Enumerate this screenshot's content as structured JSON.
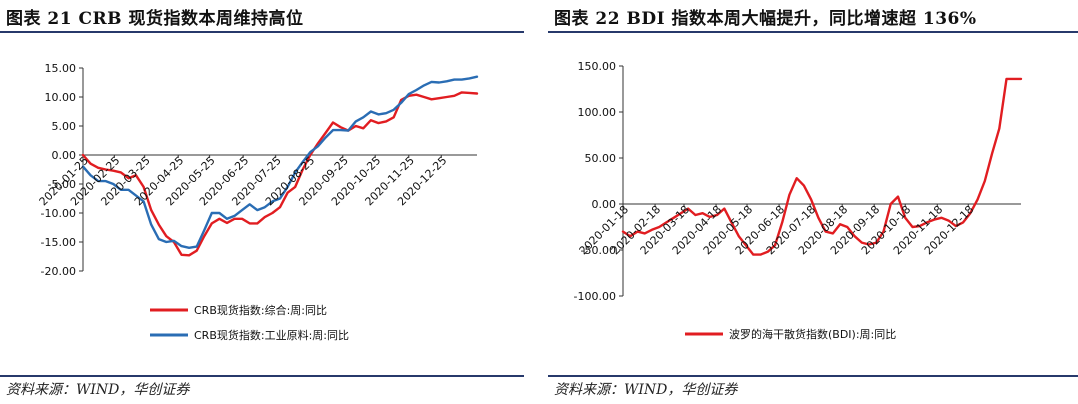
{
  "left": {
    "title": "图表 21   CRB 现货指数本周维持高位",
    "source": "资料来源：WIND，华创证券"
  },
  "right": {
    "title": "图表 22   BDI 指数本周大幅提升，同比增速超 136%",
    "source": "资料来源：WIND，华创证券"
  },
  "colors": {
    "red": "#e11d21",
    "blue": "#2a6db4",
    "rule": "#27396b"
  },
  "chart_data": [
    {
      "type": "line",
      "title": "CRB 现货指数本周维持高位",
      "ylim": [
        -20,
        15
      ],
      "yticks": [
        15,
        10,
        5,
        0,
        -5,
        -10,
        -15,
        -20
      ],
      "ytick_labels": [
        "15.00",
        "10.00",
        "5.00",
        "0.00",
        "-5.00",
        "-10.00",
        "-15.00",
        "-20.00"
      ],
      "xlim": [
        0,
        52
      ],
      "xtick_labels": [
        "2020-01-25",
        "2020-02-25",
        "2020-03-25",
        "2020-04-25",
        "2020-05-25",
        "2020-06-25",
        "2020-07-25",
        "2020-08-25",
        "2020-09-25",
        "2020-10-25",
        "2020-11-25",
        "2020-12-25"
      ],
      "xtick_pos": [
        0,
        4.14,
        8.14,
        12.57,
        16.71,
        21.14,
        25.43,
        29.86,
        34.29,
        38.57,
        43,
        47.29
      ],
      "legend_position": "bottom",
      "series": [
        {
          "name": "CRB现货指数:综合:周:同比",
          "color": "#e11d21",
          "x": [
            0,
            1,
            2,
            3,
            4,
            5,
            6,
            7,
            8,
            9,
            10,
            11,
            12,
            13,
            14,
            15,
            16,
            17,
            18,
            19,
            20,
            21,
            22,
            23,
            24,
            25,
            26,
            27,
            28,
            29,
            30,
            31,
            32,
            33,
            34,
            35,
            36,
            37,
            38,
            39,
            40,
            41,
            42,
            43,
            44,
            45,
            46,
            47,
            48,
            49,
            50,
            51,
            52
          ],
          "y": [
            0.0,
            -1.5,
            -2.2,
            -2.5,
            -2.7,
            -3.0,
            -4.0,
            -3.5,
            -5.5,
            -9.5,
            -12.0,
            -14.0,
            -15.0,
            -17.2,
            -17.3,
            -16.5,
            -14.0,
            -11.8,
            -11.0,
            -11.7,
            -11.0,
            -11.0,
            -11.8,
            -11.8,
            -10.7,
            -10.0,
            -9.0,
            -6.5,
            -5.5,
            -2.5,
            0.0,
            2.0,
            3.8,
            5.6,
            4.8,
            4.2,
            5.0,
            4.6,
            6.0,
            5.5,
            5.8,
            6.5,
            9.5,
            10.2,
            10.4,
            10.0,
            9.6,
            9.8,
            10.0,
            10.2,
            10.8,
            10.7,
            10.6
          ]
        },
        {
          "name": "CRB现货指数:工业原料:周:同比",
          "color": "#2a6db4",
          "x": [
            0,
            1,
            2,
            3,
            4,
            5,
            6,
            7,
            8,
            9,
            10,
            11,
            12,
            13,
            14,
            15,
            16,
            17,
            18,
            19,
            20,
            21,
            22,
            23,
            24,
            25,
            26,
            27,
            28,
            29,
            30,
            31,
            32,
            33,
            34,
            35,
            36,
            37,
            38,
            39,
            40,
            41,
            42,
            43,
            44,
            45,
            46,
            47,
            48,
            49,
            50,
            51,
            52
          ],
          "y": [
            -2.0,
            -3.5,
            -4.5,
            -4.5,
            -5.0,
            -6.0,
            -6.0,
            -7.0,
            -8.0,
            -12.0,
            -14.5,
            -15.0,
            -14.8,
            -15.7,
            -16.0,
            -15.8,
            -13.0,
            -10.0,
            -10.0,
            -11.0,
            -10.5,
            -9.5,
            -8.5,
            -9.5,
            -9.0,
            -8.0,
            -7.5,
            -5.5,
            -3.0,
            -1.2,
            0.5,
            1.5,
            3.0,
            4.3,
            4.3,
            4.2,
            5.8,
            6.5,
            7.5,
            7.0,
            7.2,
            7.8,
            9.0,
            10.5,
            11.2,
            12.0,
            12.6,
            12.5,
            12.7,
            13.0,
            13.0,
            13.2,
            13.5
          ]
        }
      ]
    },
    {
      "type": "line",
      "title": "BDI 指数本周大幅提升，同比增速超 136%",
      "ylim": [
        -100,
        150
      ],
      "yticks": [
        150,
        100,
        50,
        0,
        -50,
        -100
      ],
      "ytick_labels": [
        "150.00",
        "100.00",
        "50.00",
        "0.00",
        "-50.00",
        "-100.00"
      ],
      "xlim": [
        0,
        55
      ],
      "xtick_labels": [
        "2020-01-18",
        "2020-02-18",
        "2020-03-18",
        "2020-04-18",
        "2020-05-18",
        "2020-06-18",
        "2020-07-18",
        "2020-08-18",
        "2020-09-18",
        "2020-10-18",
        "2020-11-18",
        "2020-12-18"
      ],
      "xtick_pos": [
        0,
        4.43,
        8.43,
        12.86,
        17.14,
        21.57,
        25.86,
        30.29,
        34.71,
        39,
        43.43,
        47.71
      ],
      "legend_position": "bottom",
      "series": [
        {
          "name": "波罗的海干散货指数(BDI):周:同比",
          "color": "#e11d21",
          "x": [
            0,
            1,
            2,
            3,
            4,
            5,
            6,
            7,
            8,
            9,
            10,
            11,
            12,
            13,
            14,
            15,
            16,
            17,
            18,
            19,
            20,
            21,
            22,
            23,
            24,
            25,
            26,
            27,
            28,
            29,
            30,
            31,
            32,
            33,
            34,
            35,
            36,
            37,
            38,
            39,
            40,
            41,
            42,
            43,
            44,
            45,
            46,
            47,
            48,
            49,
            50,
            51,
            52,
            53,
            54,
            55
          ],
          "y": [
            -30,
            -35,
            -30,
            -32,
            -28,
            -25,
            -20,
            -15,
            -10,
            -5,
            -12,
            -10,
            -14,
            -12,
            -5,
            -20,
            -35,
            -45,
            -55,
            -55,
            -52,
            -45,
            -20,
            10,
            28,
            20,
            5,
            -15,
            -30,
            -32,
            -22,
            -25,
            -35,
            -42,
            -44,
            -42,
            -30,
            0,
            8,
            -15,
            -25,
            -24,
            -20,
            -17,
            -15,
            -18,
            -24,
            -20,
            -10,
            5,
            25,
            55,
            82,
            136,
            136,
            136
          ]
        }
      ]
    }
  ]
}
